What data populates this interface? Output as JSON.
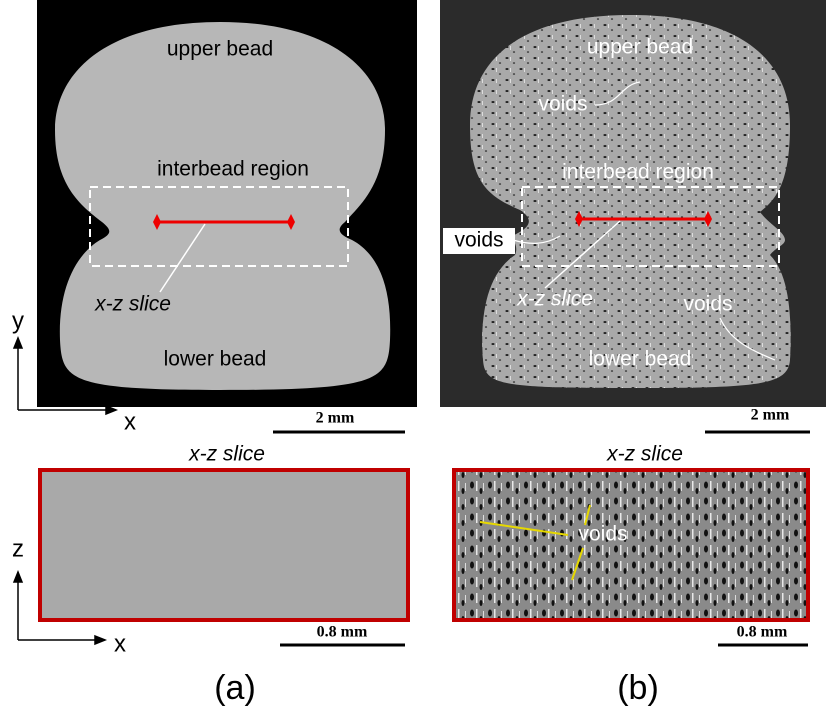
{
  "axes_top": {
    "vertical": "y",
    "horizontal": "x"
  },
  "axes_bottom": {
    "vertical": "z",
    "horizontal": "x"
  },
  "panels": [
    {
      "caption": "(a)",
      "cross_section": {
        "upper": "upper bead",
        "interbead": "interbead region",
        "slice": "x-z slice",
        "lower": "lower bead",
        "scale": "2 mm"
      },
      "slice": {
        "title": "x-z slice",
        "scale": "0.8 mm"
      }
    },
    {
      "caption": "(b)",
      "cross_section": {
        "upper": "upper bead",
        "interbead": "interbead region",
        "slice": "x-z slice",
        "lower": "lower bead",
        "scale": "2 mm",
        "voids": [
          "voids",
          "voids",
          "voids"
        ]
      },
      "slice": {
        "title": "x-z slice",
        "scale": "0.8 mm",
        "voids": "voids"
      }
    }
  ]
}
